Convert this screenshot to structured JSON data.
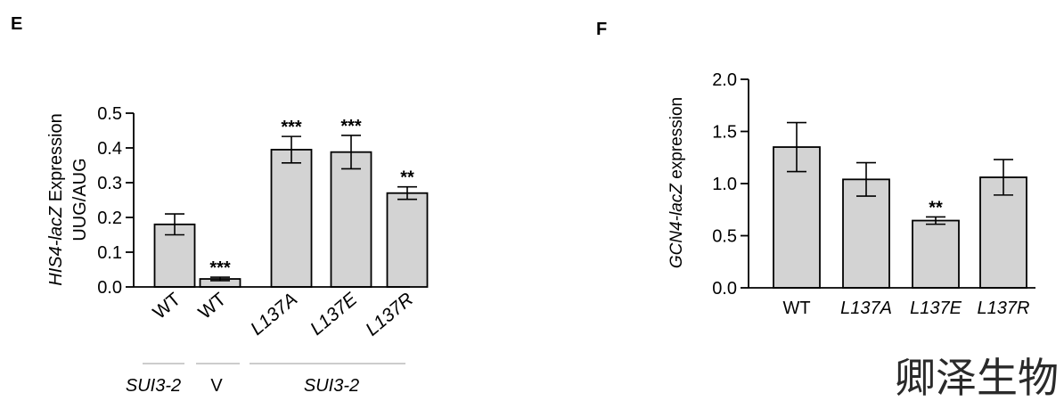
{
  "chart_data": [
    {
      "panel": "E",
      "type": "bar",
      "ylabel_italic": "HIS4-lacZ",
      "ylabel_rest": " Expression",
      "ylabel_line2": "UUG/AUG",
      "ylim": [
        0,
        0.5
      ],
      "yticks": [
        "0.0",
        "0.1",
        "0.2",
        "0.3",
        "0.4",
        "0.5"
      ],
      "categories": [
        "WT",
        "WT",
        "L137A",
        "L137E",
        "L137R"
      ],
      "values": [
        0.18,
        0.023,
        0.395,
        0.388,
        0.27
      ],
      "errors": [
        0.03,
        0.005,
        0.038,
        0.048,
        0.018
      ],
      "significance": [
        "",
        "***",
        "***",
        "***",
        "**"
      ],
      "groups": [
        {
          "label": "SUI3-2",
          "italic": true
        },
        {
          "label": "V",
          "italic": false
        },
        {
          "label": "SUI3-2",
          "italic": true
        }
      ]
    },
    {
      "panel": "F",
      "type": "bar",
      "ylabel_italic": "GCN4-lacZ",
      "ylabel_rest": " expression",
      "ylim": [
        0,
        2.0
      ],
      "yticks": [
        "0.0",
        "0.5",
        "1.0",
        "1.5",
        "2.0"
      ],
      "categories": [
        "WT",
        "L137A",
        "L137E",
        "L137R"
      ],
      "values": [
        1.35,
        1.04,
        0.645,
        1.06
      ],
      "errors": [
        0.235,
        0.16,
        0.035,
        0.17
      ],
      "significance": [
        "",
        "",
        "**",
        ""
      ]
    }
  ],
  "watermark": "卿泽生物"
}
